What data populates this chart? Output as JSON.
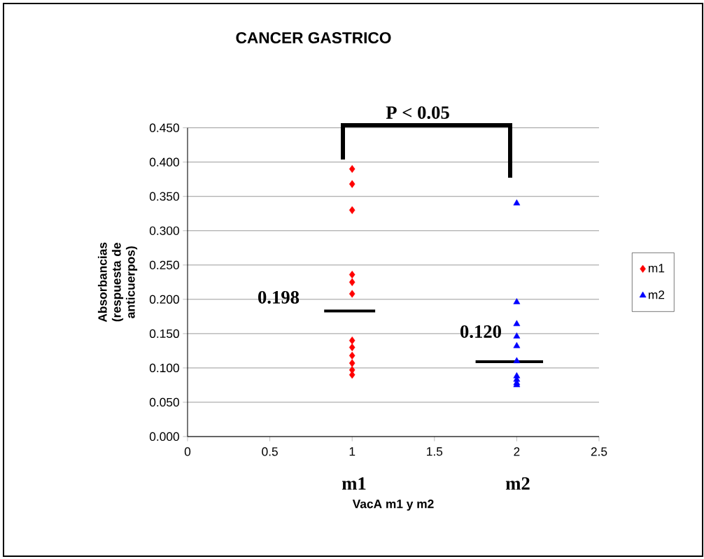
{
  "chart_data": {
    "type": "scatter",
    "title": "CANCER GASTRICO",
    "xlabel": "VacA m1 y m2",
    "ylabel": "Absorbancias (respuesta de anticuerpos)",
    "xlim": [
      0,
      2.5
    ],
    "xticks": [
      0,
      0.5,
      1,
      1.5,
      2,
      2.5
    ],
    "ylim": [
      0,
      0.45
    ],
    "yticks": [
      {
        "value": 0,
        "label": "0.000"
      },
      {
        "value": 0.05,
        "label": "0.050"
      },
      {
        "value": 0.1,
        "label": "0.100"
      },
      {
        "value": 0.15,
        "label": "0.150"
      },
      {
        "value": 0.2,
        "label": "0.200"
      },
      {
        "value": 0.25,
        "label": "0.250"
      },
      {
        "value": 0.3,
        "label": "0.300"
      },
      {
        "value": 0.35,
        "label": "0.350"
      },
      {
        "value": 0.4,
        "label": "0.400"
      },
      {
        "value": 0.45,
        "label": "0.450"
      }
    ],
    "grid": "y",
    "legend": "right",
    "series": [
      {
        "name": "m1",
        "color": "#ff0000",
        "marker": "diamond",
        "x": [
          1,
          1,
          1,
          1,
          1,
          1,
          1,
          1,
          1,
          1,
          1,
          1
        ],
        "values": [
          0.39,
          0.368,
          0.33,
          0.236,
          0.225,
          0.208,
          0.14,
          0.13,
          0.118,
          0.107,
          0.097,
          0.09
        ]
      },
      {
        "name": "m2",
        "color": "#0000ff",
        "marker": "triangle",
        "x": [
          2,
          2,
          2,
          2,
          2,
          2,
          2,
          2,
          2,
          2
        ],
        "values": [
          0.34,
          0.196,
          0.164,
          0.146,
          0.132,
          0.11,
          0.088,
          0.083,
          0.078,
          0.075
        ]
      },
      {
        "type": "line",
        "color": "#000000",
        "marker": "none",
        "x": [
          0.83,
          1.14
        ],
        "values": [
          0.183,
          0.183
        ]
      },
      {
        "type": "line",
        "color": "#000000",
        "marker": "none",
        "x": [
          1.75,
          2.16
        ],
        "values": [
          0.109,
          0.109
        ]
      }
    ],
    "annotations": [
      "P < 0.05",
      "0.198",
      "0.120",
      "m1",
      "m2"
    ]
  }
}
